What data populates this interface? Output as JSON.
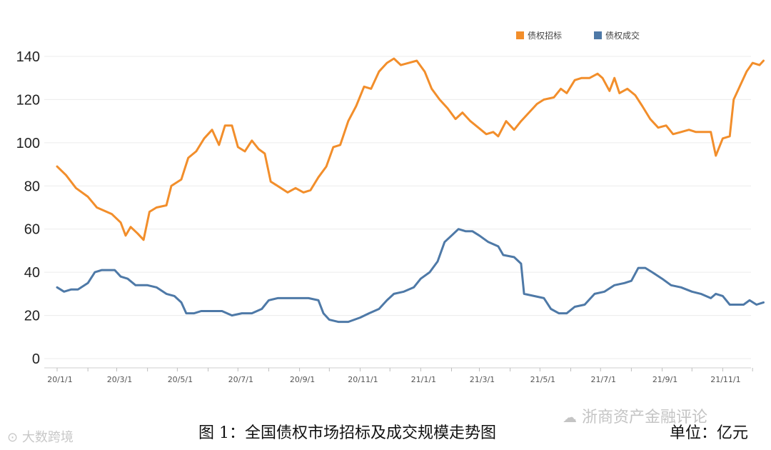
{
  "chart_data": {
    "type": "line",
    "ylim": [
      0,
      145
    ],
    "yticks": [
      0,
      20,
      40,
      60,
      80,
      100,
      120,
      140
    ],
    "grid": true,
    "legend_position": "top-right",
    "xtick_labels": [
      "20/1/1",
      "20/3/1",
      "20/5/1",
      "20/7/1",
      "20/9/1",
      "20/11/1",
      "21/1/1",
      "21/3/1",
      "21/5/1",
      "21/7/1",
      "21/9/1",
      "21/11/1"
    ],
    "series": [
      {
        "name": "债权招标",
        "color": "#f28e2b",
        "points": [
          [
            "2020-01-01",
            89
          ],
          [
            "2020-01-10",
            85
          ],
          [
            "2020-01-20",
            79
          ],
          [
            "2020-02-01",
            75
          ],
          [
            "2020-02-10",
            70
          ],
          [
            "2020-02-25",
            67
          ],
          [
            "2020-03-05",
            63
          ],
          [
            "2020-03-10",
            57
          ],
          [
            "2020-03-15",
            61
          ],
          [
            "2020-03-22",
            58
          ],
          [
            "2020-03-28",
            55
          ],
          [
            "2020-04-03",
            68
          ],
          [
            "2020-04-10",
            70
          ],
          [
            "2020-04-20",
            71
          ],
          [
            "2020-04-25",
            80
          ],
          [
            "2020-05-05",
            83
          ],
          [
            "2020-05-12",
            93
          ],
          [
            "2020-05-20",
            96
          ],
          [
            "2020-05-28",
            102
          ],
          [
            "2020-06-05",
            106
          ],
          [
            "2020-06-12",
            99
          ],
          [
            "2020-06-18",
            108
          ],
          [
            "2020-06-25",
            108
          ],
          [
            "2020-07-01",
            98
          ],
          [
            "2020-07-08",
            96
          ],
          [
            "2020-07-15",
            101
          ],
          [
            "2020-07-22",
            97
          ],
          [
            "2020-07-28",
            95
          ],
          [
            "2020-08-03",
            82
          ],
          [
            "2020-08-10",
            80
          ],
          [
            "2020-08-20",
            77
          ],
          [
            "2020-08-28",
            79
          ],
          [
            "2020-09-05",
            77
          ],
          [
            "2020-09-12",
            78
          ],
          [
            "2020-09-20",
            84
          ],
          [
            "2020-09-28",
            89
          ],
          [
            "2020-10-05",
            98
          ],
          [
            "2020-10-12",
            99
          ],
          [
            "2020-10-20",
            110
          ],
          [
            "2020-10-28",
            117
          ],
          [
            "2020-11-05",
            126
          ],
          [
            "2020-11-12",
            125
          ],
          [
            "2020-11-20",
            133
          ],
          [
            "2020-11-28",
            137
          ],
          [
            "2020-12-05",
            139
          ],
          [
            "2020-12-12",
            136
          ],
          [
            "2020-12-20",
            137
          ],
          [
            "2020-12-28",
            138
          ],
          [
            "2021-01-05",
            133
          ],
          [
            "2021-01-12",
            125
          ],
          [
            "2021-01-20",
            120
          ],
          [
            "2021-01-28",
            116
          ],
          [
            "2021-02-05",
            111
          ],
          [
            "2021-02-12",
            114
          ],
          [
            "2021-02-20",
            110
          ],
          [
            "2021-02-28",
            107
          ],
          [
            "2021-03-08",
            104
          ],
          [
            "2021-03-15",
            105
          ],
          [
            "2021-03-20",
            103
          ],
          [
            "2021-03-28",
            110
          ],
          [
            "2021-04-05",
            106
          ],
          [
            "2021-04-12",
            110
          ],
          [
            "2021-04-20",
            114
          ],
          [
            "2021-04-28",
            118
          ],
          [
            "2021-05-05",
            120
          ],
          [
            "2021-05-15",
            121
          ],
          [
            "2021-05-22",
            125
          ],
          [
            "2021-05-28",
            123
          ],
          [
            "2021-06-05",
            129
          ],
          [
            "2021-06-12",
            130
          ],
          [
            "2021-06-20",
            130
          ],
          [
            "2021-06-28",
            132
          ],
          [
            "2021-07-03",
            130
          ],
          [
            "2021-07-10",
            124
          ],
          [
            "2021-07-15",
            130
          ],
          [
            "2021-07-20",
            123
          ],
          [
            "2021-07-28",
            125
          ],
          [
            "2021-08-05",
            122
          ],
          [
            "2021-08-12",
            117
          ],
          [
            "2021-08-20",
            111
          ],
          [
            "2021-08-28",
            107
          ],
          [
            "2021-09-05",
            108
          ],
          [
            "2021-09-12",
            104
          ],
          [
            "2021-09-20",
            105
          ],
          [
            "2021-09-28",
            106
          ],
          [
            "2021-10-05",
            105
          ],
          [
            "2021-10-12",
            105
          ],
          [
            "2021-10-20",
            105
          ],
          [
            "2021-10-25",
            94
          ],
          [
            "2021-11-01",
            102
          ],
          [
            "2021-11-08",
            103
          ],
          [
            "2021-11-12",
            120
          ],
          [
            "2021-11-18",
            126
          ],
          [
            "2021-11-25",
            133
          ],
          [
            "2021-12-01",
            137
          ],
          [
            "2021-12-08",
            136
          ],
          [
            "2021-12-12",
            138
          ]
        ]
      },
      {
        "name": "债权成交",
        "color": "#4e79a7",
        "points": [
          [
            "2020-01-01",
            33
          ],
          [
            "2020-01-08",
            31
          ],
          [
            "2020-01-15",
            32
          ],
          [
            "2020-01-22",
            32
          ],
          [
            "2020-02-01",
            35
          ],
          [
            "2020-02-08",
            40
          ],
          [
            "2020-02-15",
            41
          ],
          [
            "2020-02-28",
            41
          ],
          [
            "2020-03-05",
            38
          ],
          [
            "2020-03-12",
            37
          ],
          [
            "2020-03-20",
            34
          ],
          [
            "2020-04-01",
            34
          ],
          [
            "2020-04-10",
            33
          ],
          [
            "2020-04-20",
            30
          ],
          [
            "2020-04-28",
            29
          ],
          [
            "2020-05-05",
            26
          ],
          [
            "2020-05-10",
            21
          ],
          [
            "2020-05-18",
            21
          ],
          [
            "2020-05-25",
            22
          ],
          [
            "2020-06-05",
            22
          ],
          [
            "2020-06-15",
            22
          ],
          [
            "2020-06-25",
            20
          ],
          [
            "2020-07-05",
            21
          ],
          [
            "2020-07-15",
            21
          ],
          [
            "2020-07-25",
            23
          ],
          [
            "2020-08-01",
            27
          ],
          [
            "2020-08-10",
            28
          ],
          [
            "2020-08-20",
            28
          ],
          [
            "2020-09-01",
            28
          ],
          [
            "2020-09-10",
            28
          ],
          [
            "2020-09-20",
            27
          ],
          [
            "2020-09-25",
            21
          ],
          [
            "2020-10-01",
            18
          ],
          [
            "2020-10-10",
            17
          ],
          [
            "2020-10-20",
            17
          ],
          [
            "2020-11-01",
            19
          ],
          [
            "2020-11-10",
            21
          ],
          [
            "2020-11-20",
            23
          ],
          [
            "2020-11-28",
            27
          ],
          [
            "2020-12-05",
            30
          ],
          [
            "2020-12-15",
            31
          ],
          [
            "2020-12-25",
            33
          ],
          [
            "2021-01-01",
            37
          ],
          [
            "2021-01-10",
            40
          ],
          [
            "2021-01-18",
            45
          ],
          [
            "2021-01-25",
            54
          ],
          [
            "2021-02-01",
            57
          ],
          [
            "2021-02-08",
            60
          ],
          [
            "2021-02-15",
            59
          ],
          [
            "2021-02-22",
            59
          ],
          [
            "2021-03-01",
            57
          ],
          [
            "2021-03-10",
            54
          ],
          [
            "2021-03-20",
            52
          ],
          [
            "2021-03-25",
            48
          ],
          [
            "2021-04-05",
            47
          ],
          [
            "2021-04-12",
            44
          ],
          [
            "2021-04-15",
            30
          ],
          [
            "2021-04-25",
            29
          ],
          [
            "2021-05-05",
            28
          ],
          [
            "2021-05-12",
            23
          ],
          [
            "2021-05-20",
            21
          ],
          [
            "2021-05-28",
            21
          ],
          [
            "2021-06-05",
            24
          ],
          [
            "2021-06-15",
            25
          ],
          [
            "2021-06-25",
            30
          ],
          [
            "2021-07-05",
            31
          ],
          [
            "2021-07-15",
            34
          ],
          [
            "2021-07-25",
            35
          ],
          [
            "2021-08-01",
            36
          ],
          [
            "2021-08-08",
            42
          ],
          [
            "2021-08-15",
            42
          ],
          [
            "2021-08-22",
            40
          ],
          [
            "2021-09-01",
            37
          ],
          [
            "2021-09-10",
            34
          ],
          [
            "2021-09-20",
            33
          ],
          [
            "2021-10-01",
            31
          ],
          [
            "2021-10-10",
            30
          ],
          [
            "2021-10-20",
            28
          ],
          [
            "2021-10-25",
            30
          ],
          [
            "2021-11-01",
            29
          ],
          [
            "2021-11-08",
            25
          ],
          [
            "2021-11-15",
            25
          ],
          [
            "2021-11-22",
            25
          ],
          [
            "2021-11-28",
            27
          ],
          [
            "2021-12-05",
            25
          ],
          [
            "2021-12-12",
            26
          ]
        ]
      }
    ]
  },
  "caption": "图 1：全国债权市场招标及成交规模走势图",
  "unit": "单位：亿元",
  "watermarks": {
    "right": "浙商资产金融评论",
    "left": "大数跨境"
  }
}
